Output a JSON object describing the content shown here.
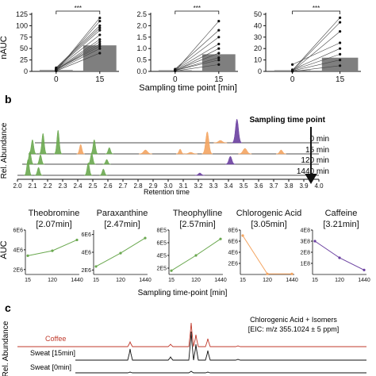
{
  "panel_a": {
    "ylabel": "nAUC",
    "xlabel": "Sampling time point [min]",
    "significance": "***",
    "xtick_labels": [
      "0",
      "15"
    ]
  },
  "panel_b": {
    "label": "b",
    "ylabel": "Rel. Abundance",
    "xlabel": "Retention time",
    "legend_title": "Sampling time point",
    "trace_labels": [
      "0 min",
      "15 min",
      "120 min",
      "1440 min"
    ],
    "xtick_labels": [
      "2.0",
      "2.1",
      "2.2",
      "2.3",
      "2.4",
      "2.5",
      "2.6",
      "2.7",
      "2.8",
      "2.9",
      "3.0",
      "3.1",
      "3.2",
      "3.3",
      "3.4",
      "3.5",
      "3.6",
      "3.7",
      "3.8",
      "3.9",
      "4.0"
    ]
  },
  "panel_b_small": {
    "ylabel": "AUC",
    "xlabel": "Sampling time-point [min]"
  },
  "panel_c": {
    "label": "c",
    "ylabel": "Rel. Abundance",
    "annotation_line1": "Chlorogenic Acid + Isomers",
    "annotation_line2": "[EIC: m/z 355.1024 ± 5 ppm]",
    "trace_labels": [
      "Coffee",
      "Sweat [15min]",
      "Sweat [0min]"
    ]
  },
  "colors": {
    "green": "#6aa84f",
    "orange": "#f4a460",
    "purple": "#6a3fa0",
    "bar": "#7f7f7f",
    "coffee": "#c0392b"
  },
  "chart_data": [
    {
      "type": "bar",
      "panel": "a-1",
      "categories": [
        "0",
        "15"
      ],
      "values": [
        3,
        57
      ],
      "yticks": [
        "0",
        "25",
        "50",
        "75",
        "100",
        "125"
      ],
      "ylim": [
        0,
        125
      ],
      "paired_y0": [
        1,
        2,
        3,
        4,
        5,
        6,
        7,
        8,
        2,
        1,
        3,
        4
      ],
      "paired_y15": [
        40,
        50,
        60,
        70,
        80,
        90,
        95,
        100,
        110,
        117,
        65,
        55
      ]
    },
    {
      "type": "bar",
      "panel": "a-2",
      "categories": [
        "0",
        "15"
      ],
      "values": [
        0.05,
        0.75
      ],
      "yticks": [
        "0.0",
        "0.5",
        "1.0",
        "1.5",
        "2.0",
        "2.5"
      ],
      "ylim": [
        0,
        2.5
      ],
      "paired_y0": [
        0.02,
        0.04,
        0.05,
        0.03,
        0.06,
        0.08,
        0.1,
        0.02,
        0.04
      ],
      "paired_y15": [
        0.3,
        0.5,
        0.8,
        1.0,
        1.2,
        1.5,
        1.8,
        2.2,
        0.6
      ]
    },
    {
      "type": "bar",
      "panel": "a-3",
      "categories": [
        "0",
        "15"
      ],
      "values": [
        1,
        12
      ],
      "yticks": [
        "0",
        "10",
        "20",
        "30",
        "40",
        "50"
      ],
      "ylim": [
        0,
        50
      ],
      "paired_y0": [
        0,
        0.5,
        1,
        1.5,
        6,
        0.3,
        0.8,
        1
      ],
      "paired_y15": [
        5,
        10,
        15,
        20,
        25,
        35,
        43,
        47
      ]
    },
    {
      "type": "line",
      "panel": "b-theobromine",
      "title": "Theobromine [2.07min]",
      "x": [
        "15",
        "120",
        "1440"
      ],
      "y": [
        3400000.0,
        3900000.0,
        5000000.0
      ],
      "yticks": [
        "2E6",
        "4E6",
        "6E6"
      ],
      "ylim": [
        1500000.0,
        6000000.0
      ],
      "color": "#6aa84f"
    },
    {
      "type": "line",
      "panel": "b-paraxanthine",
      "title": "Paraxanthine [2.47min]",
      "x": [
        "15",
        "120",
        "1440"
      ],
      "y": [
        2400000.0,
        3900000.0,
        5600000.0
      ],
      "yticks": [
        "2E6",
        "4E6",
        "6E6"
      ],
      "ylim": [
        1500000.0,
        6500000.0
      ],
      "color": "#6aa84f"
    },
    {
      "type": "line",
      "panel": "b-theophylline",
      "title": "Theophylline [2.57min]",
      "x": [
        "15",
        "120",
        "1440"
      ],
      "y": [
        160000.0,
        400000.0,
        660000.0
      ],
      "yticks": [
        "2E5",
        "4E5",
        "6E5",
        "8E5"
      ],
      "ylim": [
        100000.0,
        800000.0
      ],
      "color": "#6aa84f"
    },
    {
      "type": "line",
      "panel": "b-chlorogenic-acid",
      "title": "Chlorogenic Acid [3.05min]",
      "x": [
        "15",
        "120",
        "1440"
      ],
      "y": [
        7000000.0,
        100000.0,
        100000.0
      ],
      "yticks": [
        "2E6",
        "4E6",
        "6E6",
        "8E6"
      ],
      "ylim": [
        0,
        8000000.0
      ],
      "color": "#f4a460"
    },
    {
      "type": "line",
      "panel": "b-caffeine",
      "title": "Caffeine [3.21min]",
      "x": [
        "15",
        "120",
        "1440"
      ],
      "y": [
        300000000.0,
        150000000.0,
        40000000.0
      ],
      "yticks": [
        "1E8",
        "2E8",
        "3E8",
        "4E8"
      ],
      "ylim": [
        0,
        400000000.0
      ],
      "color": "#6a3fa0"
    }
  ],
  "small_titles": [
    "Theobromine",
    "Paraxanthine",
    "Theophylline",
    "Chlorogenic Acid",
    "Caffeine"
  ],
  "small_subtitles": [
    "[2.07min]",
    "[2.47min]",
    "[2.57min]",
    "[3.05min]",
    "[3.21min]"
  ],
  "small_xticks": [
    "15",
    "120",
    "1440"
  ]
}
